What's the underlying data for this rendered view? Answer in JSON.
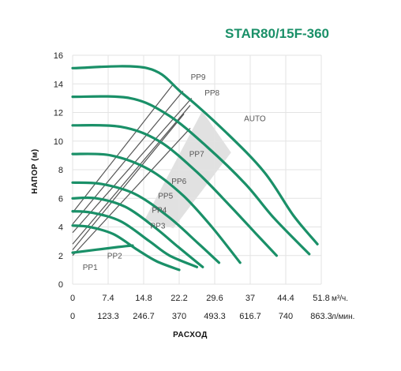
{
  "chart_data": {
    "type": "line",
    "title": "STAR80/15F-360",
    "ylabel": "НАПОР (м)",
    "xlabel": "РАСХОД",
    "ylim": [
      0,
      16
    ],
    "xlim": [
      0,
      51.8
    ],
    "grid": true,
    "y_ticks": [
      "0",
      "2",
      "4",
      "6",
      "8",
      "10",
      "12",
      "14",
      "16"
    ],
    "x_ticks_primary": [
      "0",
      "7.4",
      "14.8",
      "22.2",
      "29.6",
      "37",
      "44.4",
      "51.8"
    ],
    "x_unit_primary": "м³/ч.",
    "x_ticks_secondary": [
      "0",
      "123.3",
      "246.7",
      "370",
      "493.3",
      "616.7",
      "740",
      "863.3"
    ],
    "x_unit_secondary": "л/мин.",
    "colors": {
      "curve": "#1a9068",
      "title": "#1a9068",
      "line": "#555555",
      "auto_band": "#c8c8c8",
      "grid": "#e3e3e3"
    },
    "series": [
      {
        "name": "PP9",
        "x": [
          0,
          15.5,
          23,
          32,
          40,
          46,
          51
        ],
        "y": [
          15.1,
          15.1,
          13.3,
          10.6,
          7.8,
          4.8,
          2.8
        ]
      },
      {
        "name": "PP8",
        "x": [
          0,
          12,
          20,
          28,
          36,
          42,
          49.3
        ],
        "y": [
          13.1,
          13.0,
          11.8,
          9.6,
          7.0,
          4.6,
          2.1
        ]
      },
      {
        "name": "PP7",
        "x": [
          0,
          10,
          18,
          26,
          33,
          38,
          42.5
        ],
        "y": [
          11.1,
          11.0,
          10.0,
          7.8,
          5.4,
          3.6,
          2.0
        ]
      },
      {
        "name": "PP6",
        "x": [
          0,
          8,
          16,
          23,
          29,
          34.9
        ],
        "y": [
          9.1,
          9.0,
          8.0,
          6.2,
          4.0,
          1.5
        ]
      },
      {
        "name": "PP5",
        "x": [
          0,
          6,
          13,
          20,
          26,
          30.5
        ],
        "y": [
          7.1,
          7.0,
          6.3,
          4.7,
          2.9,
          1.5
        ]
      },
      {
        "name": "PP4",
        "x": [
          0,
          5,
          11,
          17,
          22,
          27.1
        ],
        "y": [
          6.0,
          6.0,
          5.4,
          4.0,
          2.6,
          1.2
        ]
      },
      {
        "name": "PP3",
        "x": [
          0,
          4,
          10,
          16,
          20.2,
          25.9
        ],
        "y": [
          5.1,
          5.0,
          4.4,
          3.0,
          2.0,
          1.2
        ]
      },
      {
        "name": "PP2",
        "x": [
          0,
          3.5,
          8.5,
          13.5,
          17.5,
          22.2
        ],
        "y": [
          4.1,
          4.0,
          3.5,
          2.4,
          1.6,
          1.0
        ]
      },
      {
        "name": "PP1",
        "x": [
          0,
          9.5,
          12.5
        ],
        "y": [
          2.2,
          2.6,
          2.7
        ]
      }
    ],
    "constant_pressure_lines": [
      {
        "x": [
          0,
          24.5
        ],
        "y": [
          2.0,
          10.9
        ]
      },
      {
        "x": [
          0,
          23.2
        ],
        "y": [
          2.4,
          11.9
        ]
      },
      {
        "x": [
          0,
          24.5
        ],
        "y": [
          2.8,
          12.5
        ]
      },
      {
        "x": [
          0,
          24.8
        ],
        "y": [
          3.6,
          13.0
        ]
      },
      {
        "x": [
          0,
          23.0
        ],
        "y": [
          4.2,
          13.5
        ]
      },
      {
        "x": [
          0,
          21.0
        ],
        "y": [
          5.0,
          14.0
        ]
      }
    ],
    "auto_band": {
      "x": [
        15,
        27,
        33,
        21
      ],
      "y": [
        4.5,
        12.1,
        9.2,
        3.9
      ]
    },
    "annotations": [
      {
        "text": "PP9",
        "x": 24.6,
        "y": 14.3
      },
      {
        "text": "PP8",
        "x": 27.5,
        "y": 13.2
      },
      {
        "text": "AUTO",
        "x": 35.7,
        "y": 11.4
      },
      {
        "text": "PP7",
        "x": 24.3,
        "y": 8.9
      },
      {
        "text": "PP6",
        "x": 20.6,
        "y": 7.0
      },
      {
        "text": "PP5",
        "x": 17.8,
        "y": 6.0
      },
      {
        "text": "PP4",
        "x": 16.5,
        "y": 5.0
      },
      {
        "text": "PP3",
        "x": 16.2,
        "y": 3.9
      },
      {
        "text": "PP2",
        "x": 7.2,
        "y": 1.8
      },
      {
        "text": "PP1",
        "x": 2.1,
        "y": 1.0
      }
    ]
  }
}
